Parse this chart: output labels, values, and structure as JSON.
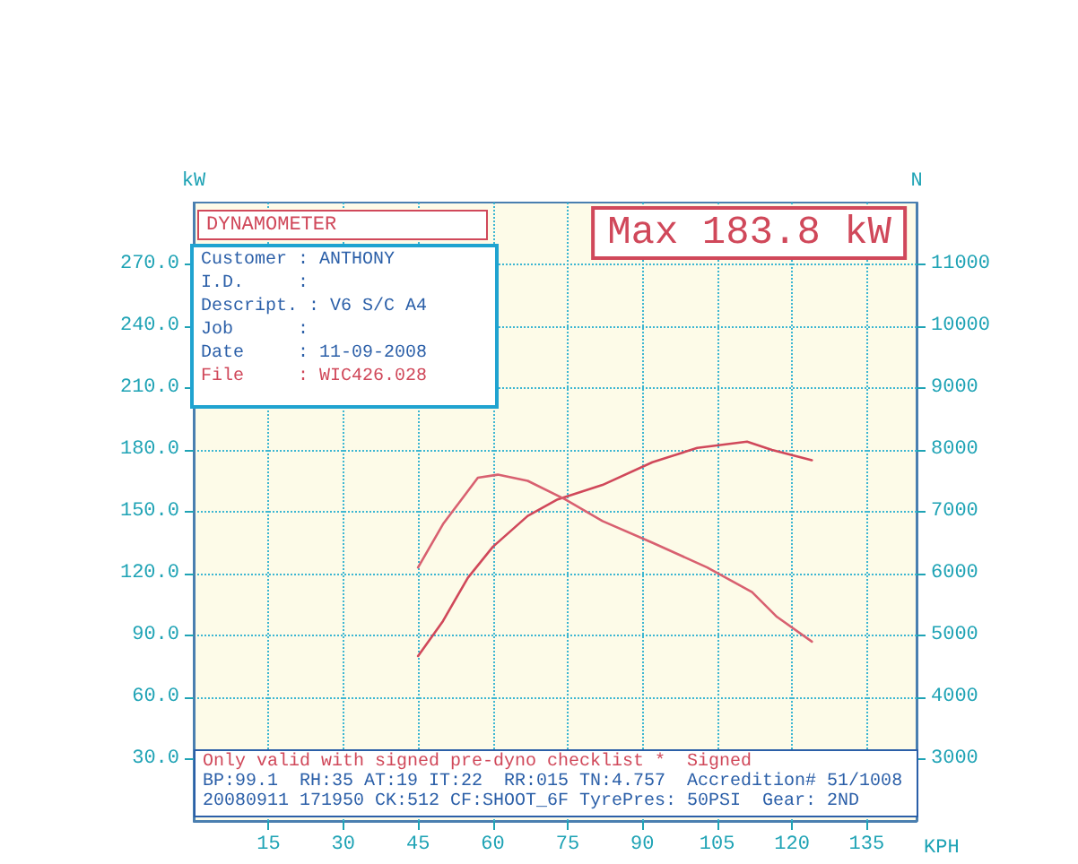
{
  "chart_data": {
    "type": "line",
    "title": "Max 183.8 kW",
    "xlabel": "KPH",
    "ylabel": "kW",
    "y2label": "N",
    "annotations": [
      "DYNAMOMETER",
      "Customer : ANTHONY",
      "I.D.     :",
      "Descript. : V6 S/C A4",
      "Job      :",
      "Date     : 11-09-2008",
      "File     : WIC426.028",
      "Only valid with signed pre-dyno checklist *  Signed",
      "BP:99.1  RH:35 AT:19 IT:22  RR:015 TN:4.757  Accredition# 51/1008",
      "20080911 171950 CK:512 CF:SHOOT_6F TyrePres: 50PSI  Gear: 2ND"
    ],
    "series": [
      {
        "color": "#d0485a",
        "x": [
          45,
          50,
          55,
          60,
          67,
          73,
          82,
          92,
          101,
          111,
          116,
          124
        ],
        "values": [
          80,
          97,
          118,
          133,
          148,
          156,
          163,
          174,
          181,
          184,
          180,
          175
        ]
      },
      {
        "color": "#d86070",
        "axis": "y2",
        "x": [
          45,
          50,
          57,
          61,
          67,
          74.5,
          82,
          92,
          103,
          112,
          117,
          124
        ],
        "values": [
          6100,
          6800,
          7550,
          7600,
          7500,
          7200,
          6850,
          6500,
          6100,
          5700,
          5300,
          4900
        ]
      }
    ],
    "xlim": [
      0,
      145
    ],
    "xticks": [
      15,
      30,
      45,
      60,
      75,
      90,
      105,
      120,
      135
    ],
    "ylim": [
      0,
      300
    ],
    "yticks": [
      {
        "value": 30,
        "label": "30.0"
      },
      {
        "value": 60,
        "label": "60.0"
      },
      {
        "value": 90,
        "label": "90.0"
      },
      {
        "value": 120,
        "label": "120.0"
      },
      {
        "value": 150,
        "label": "150.0"
      },
      {
        "value": 180,
        "label": "180.0"
      },
      {
        "value": 210,
        "label": "210.0"
      },
      {
        "value": 240,
        "label": "240.0"
      },
      {
        "value": 270,
        "label": "270.0"
      }
    ],
    "y2lim": [
      2000,
      12000
    ],
    "y2ticks": [
      3000,
      4000,
      5000,
      6000,
      7000,
      8000,
      9000,
      10000,
      11000
    ],
    "grid": true,
    "marker": "none",
    "line_style": "solid"
  }
}
